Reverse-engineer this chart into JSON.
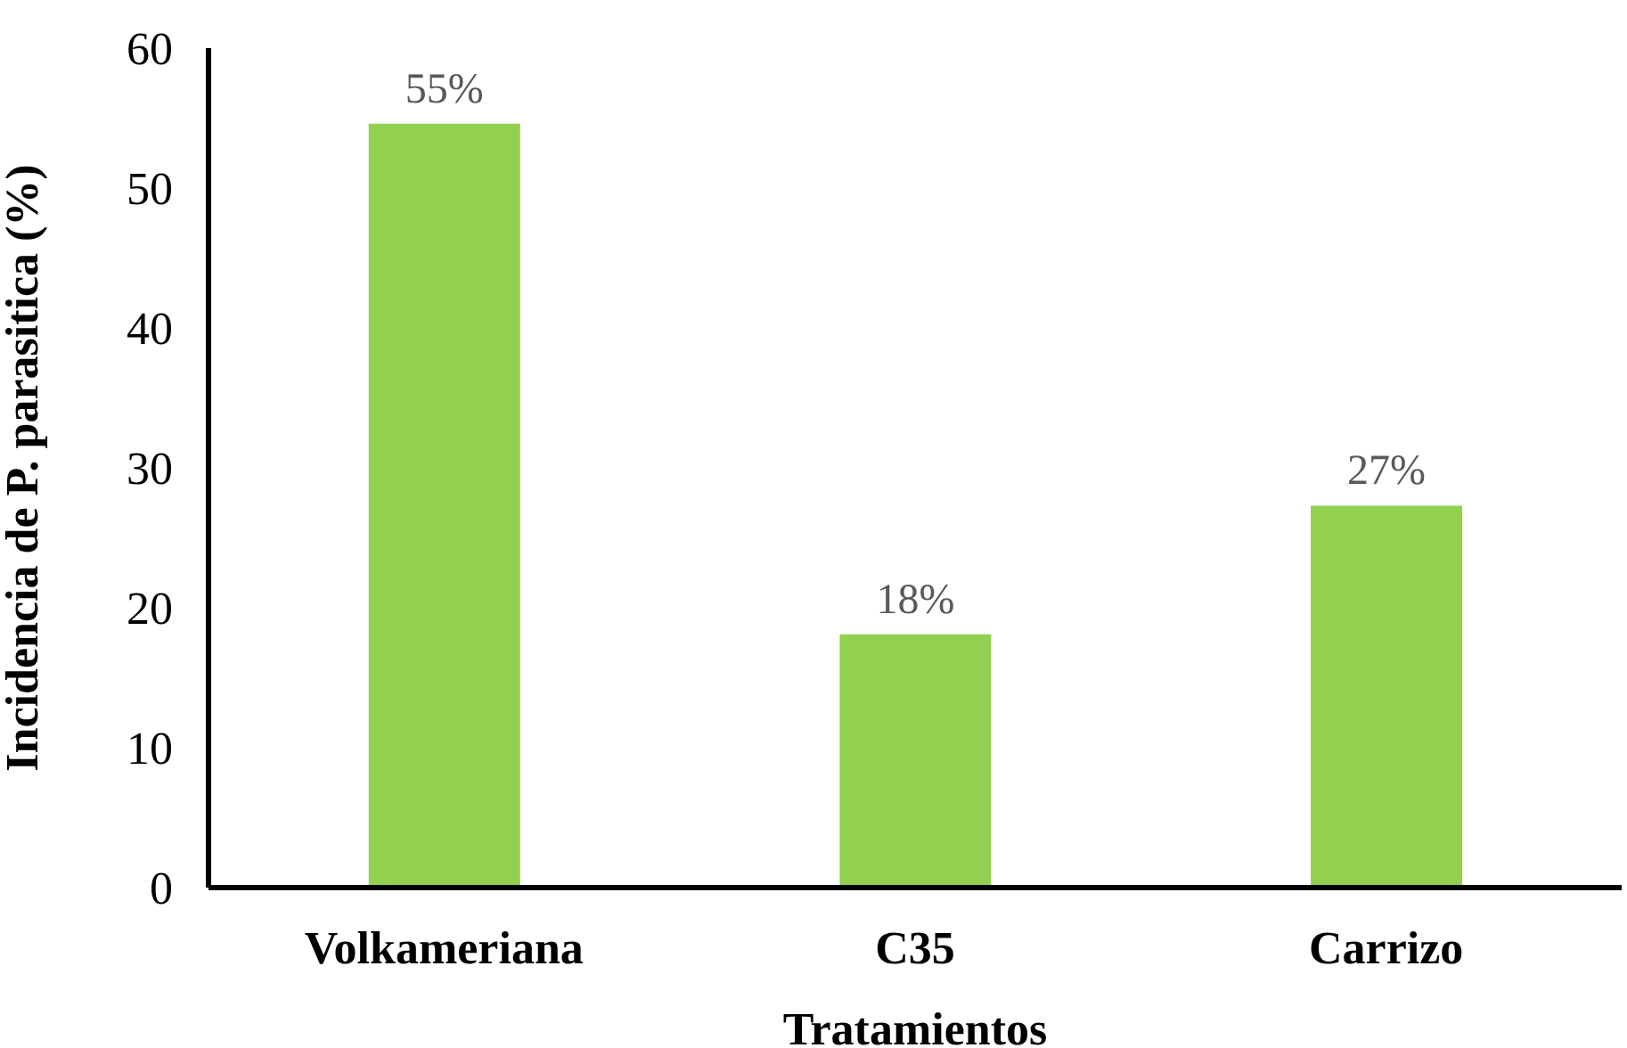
{
  "chart_data": {
    "type": "bar",
    "ylabel": "Incidencia de P. parasitica (%)",
    "xlabel": "Tratamientos",
    "categories": [
      "Volkameriana",
      "C35",
      "Carrizo"
    ],
    "values": [
      54.6,
      18.1,
      27.3
    ],
    "value_labels": [
      "55%",
      "18%",
      "27%"
    ],
    "color": "#92d050",
    "ylim": [
      0,
      60
    ],
    "yticks": [
      0,
      10,
      20,
      30,
      40,
      50,
      60
    ],
    "grid": false,
    "legend": false
  }
}
